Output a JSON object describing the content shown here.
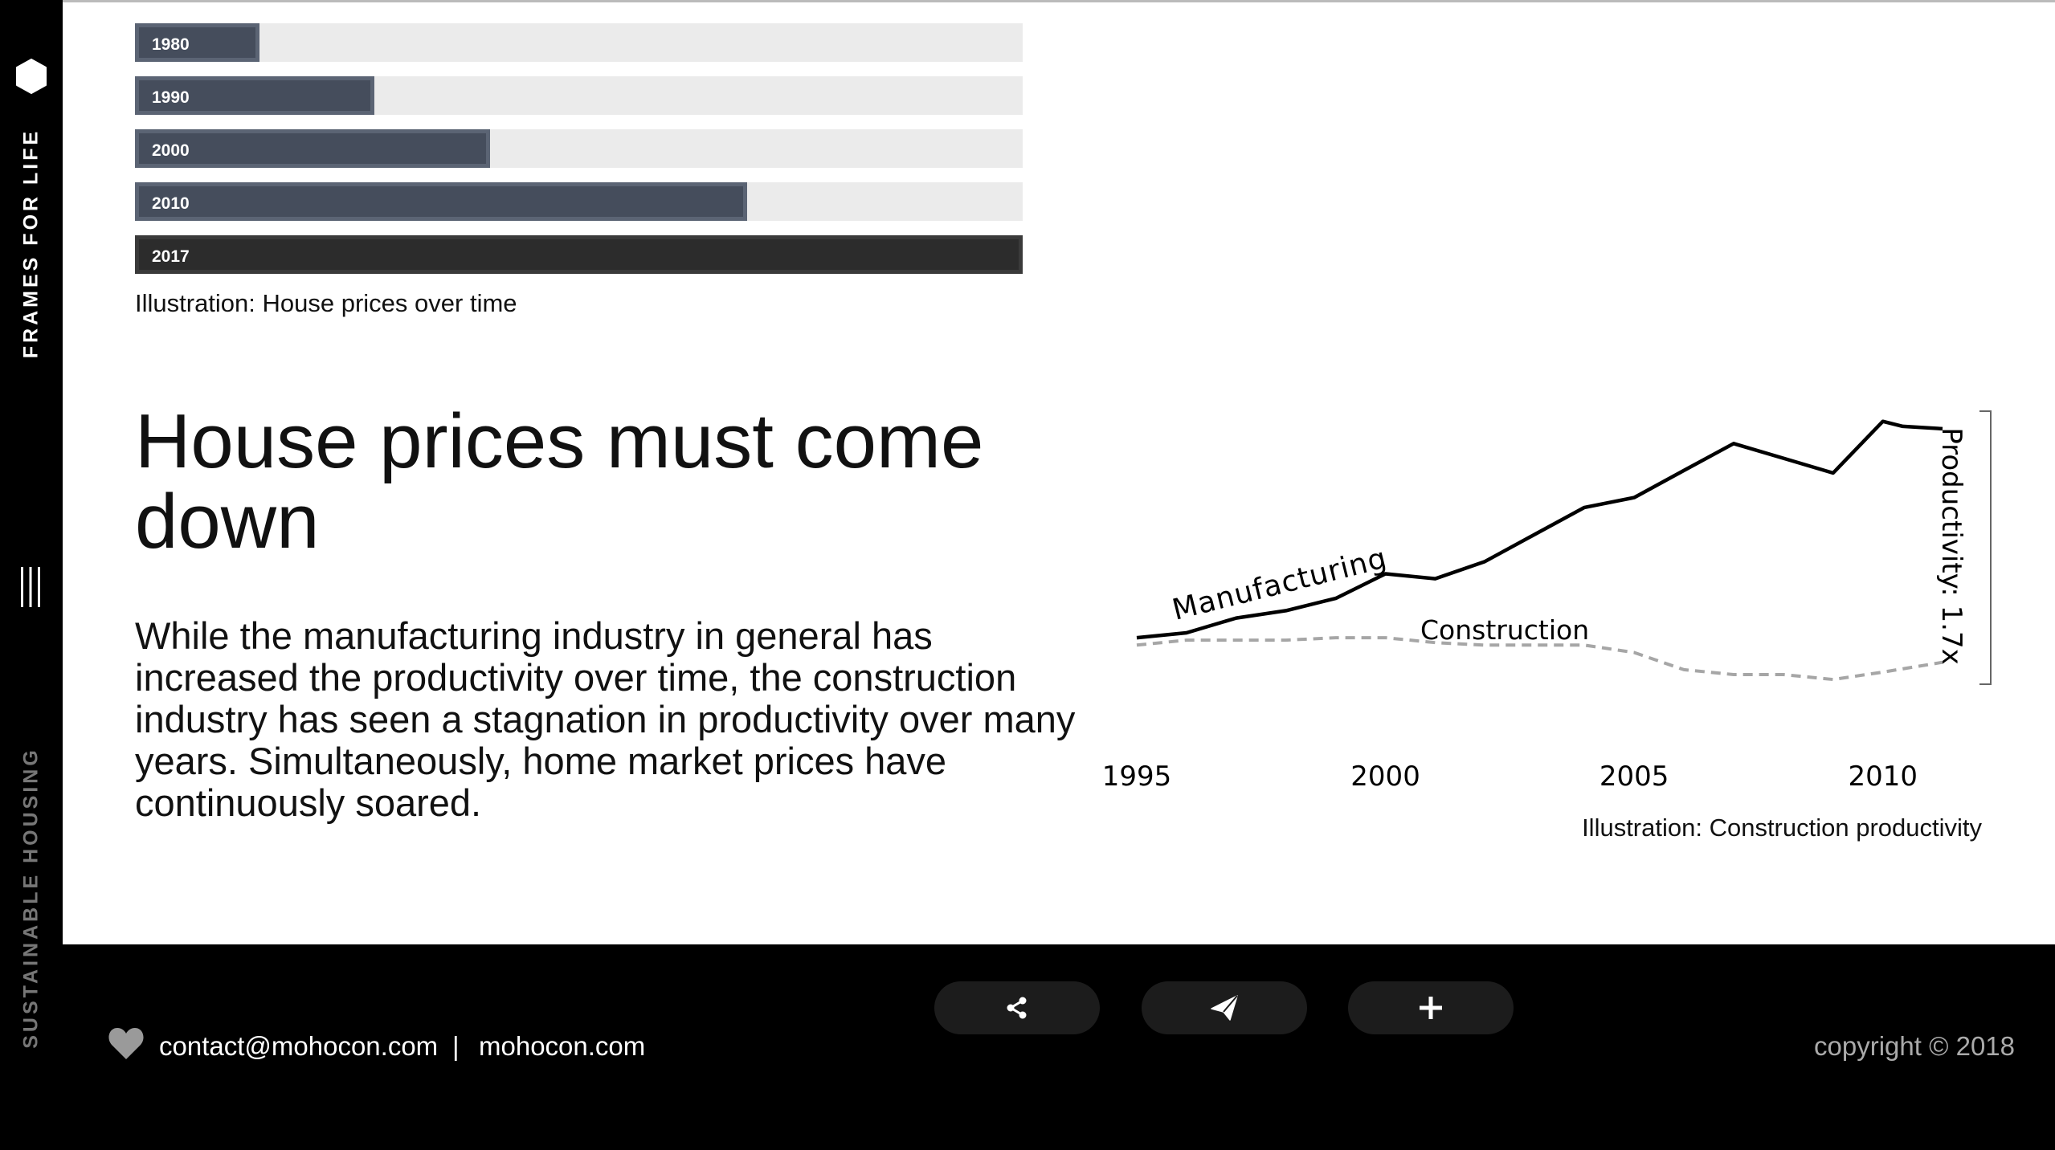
{
  "sidebar": {
    "brand_icon": "hexagon-logo-icon",
    "brand_name": "FRAMES FOR LIFE",
    "menu_icon": "menu-lines-icon",
    "section_label": "SUSTAINABLE HOUSING"
  },
  "house_prices": {
    "bars": [
      {
        "label": "1980",
        "level": 0.14
      },
      {
        "label": "1990",
        "level": 0.27
      },
      {
        "label": "2000",
        "level": 0.4
      },
      {
        "label": "2010",
        "level": 0.69
      },
      {
        "label": "2017",
        "level": 1.0
      }
    ],
    "caption": "Illustration: House prices over time"
  },
  "article": {
    "headline": "House prices must come down",
    "body": "While the manufacturing industry in general has increased the productivity over time, the construction industry has seen a stagnation in productivity over many years. Simultaneously, home market prices have continuously soared."
  },
  "chart_data": {
    "type": "line",
    "x_ticks": [
      "1995",
      "2000",
      "2005",
      "2010"
    ],
    "xlim": [
      1995,
      2011.2
    ],
    "ylim": [
      0.85,
      2.0
    ],
    "series": [
      {
        "name": "Manufacturing",
        "style": "solid",
        "color": "#000000",
        "x": [
          1995,
          1996,
          1997,
          1998,
          1999,
          2000,
          2001,
          2002,
          2003,
          2004,
          2005,
          2006,
          2007,
          2008,
          2009,
          2010,
          2010.4,
          2011.2
        ],
        "y": [
          1.0,
          1.02,
          1.08,
          1.11,
          1.16,
          1.26,
          1.24,
          1.31,
          1.42,
          1.53,
          1.57,
          1.68,
          1.79,
          1.73,
          1.67,
          1.88,
          1.86,
          1.85
        ]
      },
      {
        "name": "Construction",
        "style": "dashed",
        "color": "#a6a6a6",
        "x": [
          1995,
          1996,
          1997,
          1998,
          1999,
          2000,
          2001,
          2002,
          2003,
          2004,
          2005,
          2006,
          2007,
          2008,
          2009,
          2010,
          2011.2
        ],
        "y": [
          0.97,
          0.99,
          0.99,
          0.99,
          1.0,
          1.0,
          0.98,
          0.97,
          0.97,
          0.97,
          0.94,
          0.87,
          0.85,
          0.85,
          0.83,
          0.86,
          0.9
        ]
      }
    ],
    "annotation": "Productivity: 1.7x",
    "caption": "Illustration: Construction productivity"
  },
  "footer": {
    "heart_icon": "heart-icon",
    "email": "contact@mohocon.com",
    "separator": "|",
    "site": "mohocon.com",
    "buttons": [
      {
        "name": "share-button",
        "icon": "share-icon"
      },
      {
        "name": "send-button",
        "icon": "paper-plane-icon"
      },
      {
        "name": "add-button",
        "icon": "plus-icon"
      }
    ],
    "copyright": "copyright © 2018"
  }
}
